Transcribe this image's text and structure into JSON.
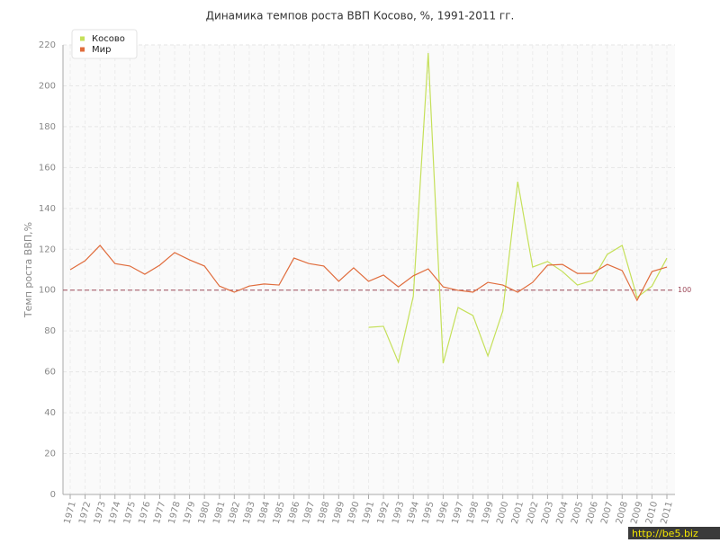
{
  "chart_data": {
    "type": "line",
    "title": "Динамика темпов роста ВВП Косово, %, 1991-2011 гг.",
    "y_label": "Темп роста ВВП,%",
    "categories": [
      "1971",
      "1972",
      "1973",
      "1974",
      "1975",
      "1976",
      "1977",
      "1978",
      "1979",
      "1980",
      "1981",
      "1982",
      "1983",
      "1984",
      "1985",
      "1986",
      "1987",
      "1988",
      "1989",
      "1990",
      "1991",
      "1992",
      "1993",
      "1994",
      "1995",
      "1996",
      "1997",
      "1998",
      "1999",
      "2000",
      "2001",
      "2002",
      "2003",
      "2004",
      "2005",
      "2006",
      "2007",
      "2008",
      "2009",
      "2010",
      "2011"
    ],
    "series": [
      {
        "name": "Косово",
        "color": "#c5e05a",
        "values": [
          null,
          null,
          null,
          null,
          null,
          null,
          null,
          null,
          null,
          null,
          null,
          null,
          null,
          null,
          null,
          null,
          null,
          null,
          null,
          null,
          81.8,
          82.3,
          64.7,
          97,
          216,
          64.2,
          91.5,
          87.6,
          67.8,
          89.8,
          153.1,
          111.3,
          114,
          109.1,
          102.5,
          104.7,
          117.5,
          121.9,
          96.4,
          102,
          115.7
        ]
      },
      {
        "name": "Мир",
        "color": "#e06c3c",
        "values": [
          110,
          114.4,
          121.9,
          113,
          111.8,
          107.8,
          112.2,
          118.4,
          114.8,
          111.8,
          102,
          99,
          102,
          103,
          102.5,
          115.7,
          113,
          111.8,
          104.3,
          110.9,
          104.3,
          107.4,
          101.6,
          107,
          110.4,
          101.6,
          99.9,
          99,
          103.8,
          102.5,
          99,
          103.8,
          112.2,
          112.6,
          108.2,
          108.2,
          112.6,
          109.6,
          95,
          109.1,
          111.3
        ]
      }
    ],
    "ylim": [
      0,
      220
    ],
    "yticks": [
      0,
      20,
      40,
      60,
      80,
      100,
      120,
      140,
      160,
      180,
      200,
      220
    ],
    "grid": true,
    "legend": "top-left",
    "reference_line": 100,
    "reference_color": "#9e4a5a",
    "watermark": "http://be5.biz"
  }
}
